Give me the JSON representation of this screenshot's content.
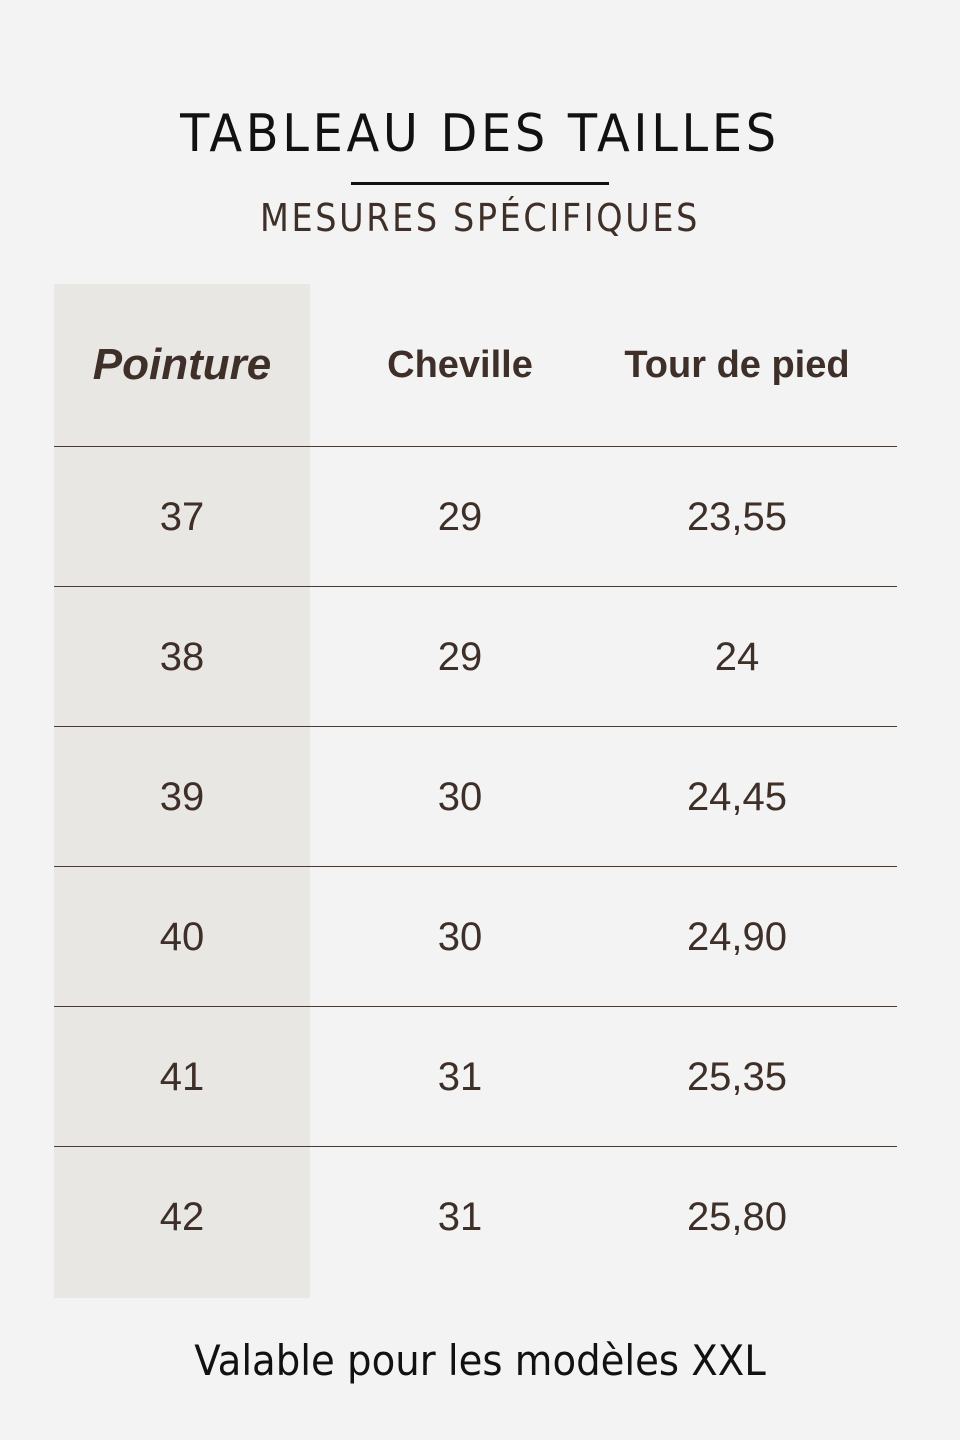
{
  "header": {
    "title": "TABLEAU DES TAILLES",
    "subtitle": "MESURES SPÉCIFIQUES"
  },
  "table": {
    "columns": [
      "Pointure",
      "Cheville",
      "Tour de pied"
    ],
    "rows": [
      [
        "37",
        "29",
        "23,55"
      ],
      [
        "38",
        "29",
        "24"
      ],
      [
        "39",
        "30",
        "24,45"
      ],
      [
        "40",
        "30",
        "24,90"
      ],
      [
        "41",
        "31",
        "25,35"
      ],
      [
        "42",
        "31",
        "25,80"
      ]
    ]
  },
  "footer": {
    "note": "Valable pour les modèles XXL"
  },
  "colors": {
    "background": "#f3f3f3",
    "shaded_column": "#e9e7e4",
    "text": "#3e3028"
  }
}
